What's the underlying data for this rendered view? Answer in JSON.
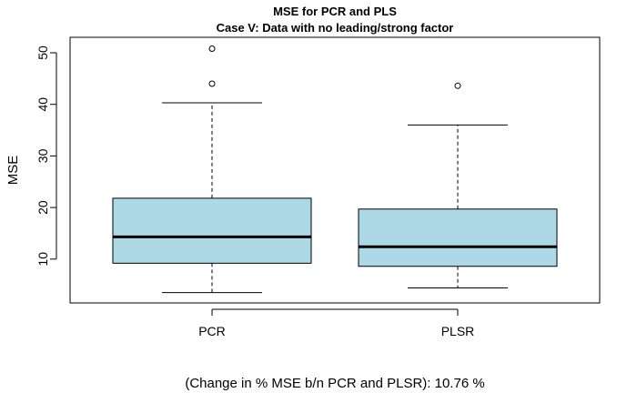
{
  "chart_data": {
    "type": "boxplot",
    "title": "MSE for PCR and PLS",
    "subtitle": "Case V: Data with no leading/strong factor",
    "xlabel": "",
    "ylabel": "MSE",
    "ylim": [
      1.5,
      53
    ],
    "yticks": [
      10,
      20,
      30,
      40,
      50
    ],
    "grid": false,
    "box_color": "#add8e6",
    "categories": [
      "PCR",
      "PLSR"
    ],
    "boxes": [
      {
        "label": "PCR",
        "whisker_low": 3.5,
        "q1": 9.2,
        "median": 14.3,
        "q3": 21.8,
        "whisker_high": 40.3,
        "outliers": [
          44.0,
          50.8
        ]
      },
      {
        "label": "PLSR",
        "whisker_low": 4.4,
        "q1": 8.6,
        "median": 12.4,
        "q3": 19.7,
        "whisker_high": 36.0,
        "outliers": [
          43.6
        ]
      }
    ],
    "annotation": "(Change in % MSE b/n PCR and PLSR):  10.76 %"
  }
}
